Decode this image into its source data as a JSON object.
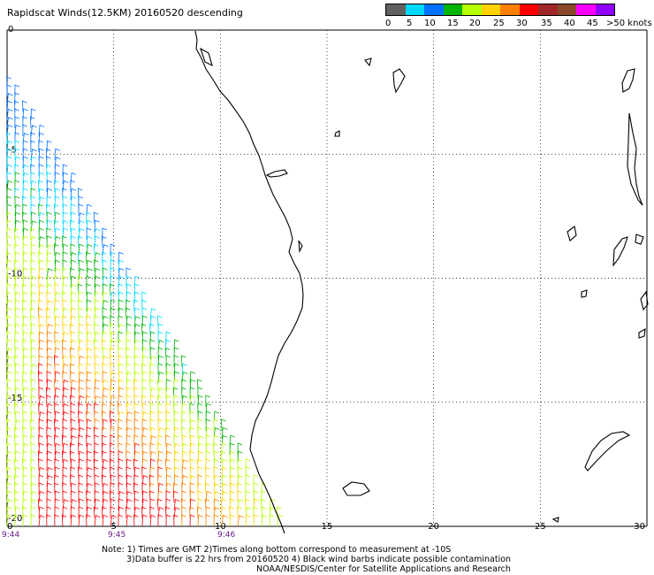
{
  "header": {
    "title": "Rapidscat Winds(12.5KM) 20160520 descending"
  },
  "legend": {
    "colors": [
      "#606060",
      "#00d8ff",
      "#0072ff",
      "#00b400",
      "#b4ff00",
      "#ffd200",
      "#ff8000",
      "#ff0000",
      "#a02828",
      "#8a4a2a",
      "#ff00ff",
      "#9000ff"
    ],
    "labels": [
      "0",
      "5",
      "10",
      "15",
      "20",
      "25",
      "30",
      "35",
      "40",
      "45",
      ">50 knots"
    ]
  },
  "axes": {
    "x_ticks": [
      "0",
      "5",
      "10",
      "15",
      "20",
      "25",
      "30"
    ],
    "y_ticks": [
      "0",
      "-5",
      "-10",
      "-15",
      "-20"
    ]
  },
  "times": [
    "9:44",
    "9:45",
    "9:46"
  ],
  "notes": [
    "Note: 1) Times are GMT 2)Times along bottom correspond to measurement at -10S",
    "3)Data buffer is 22 hrs from 20160520 4) Black wind barbs indicate possible contamination",
    "NOAA/NESDIS/Center for Satellite Applications and Research"
  ]
}
